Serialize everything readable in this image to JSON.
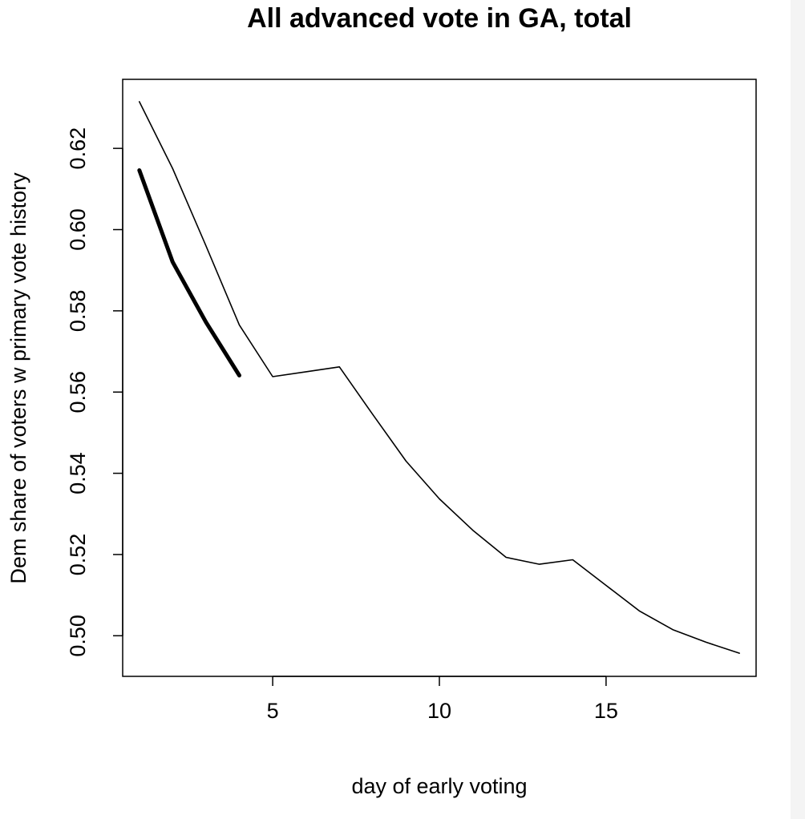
{
  "chart_data": {
    "type": "line",
    "title": "All advanced vote in GA, total",
    "xlabel": "day of early voting",
    "ylabel": "Dem share of voters w primary vote history",
    "xlim": [
      0.5,
      19.5
    ],
    "ylim": [
      0.49,
      0.637
    ],
    "x_ticks": [
      5,
      10,
      15
    ],
    "y_ticks": [
      0.5,
      0.52,
      0.54,
      0.56,
      0.58,
      0.6,
      0.62
    ],
    "y_tick_labels": [
      "0.50",
      "0.52",
      "0.54",
      "0.56",
      "0.58",
      "0.60",
      "0.62"
    ],
    "grid": false,
    "series": [
      {
        "style": "thin",
        "x": [
          1,
          2,
          3,
          4,
          5,
          6,
          7,
          8,
          9,
          10,
          11,
          12,
          13,
          14,
          15,
          16,
          17,
          18,
          19
        ],
        "y": [
          0.6315,
          0.615,
          0.596,
          0.5765,
          0.5638,
          0.565,
          0.5662,
          0.5545,
          0.543,
          0.5337,
          0.526,
          0.5193,
          0.5176,
          0.5187,
          0.5124,
          0.5061,
          0.5015,
          0.4984,
          0.4957
        ]
      },
      {
        "style": "thick",
        "x": [
          1,
          2,
          3,
          4
        ],
        "y": [
          0.6146,
          0.592,
          0.5772,
          0.5641
        ]
      }
    ]
  }
}
